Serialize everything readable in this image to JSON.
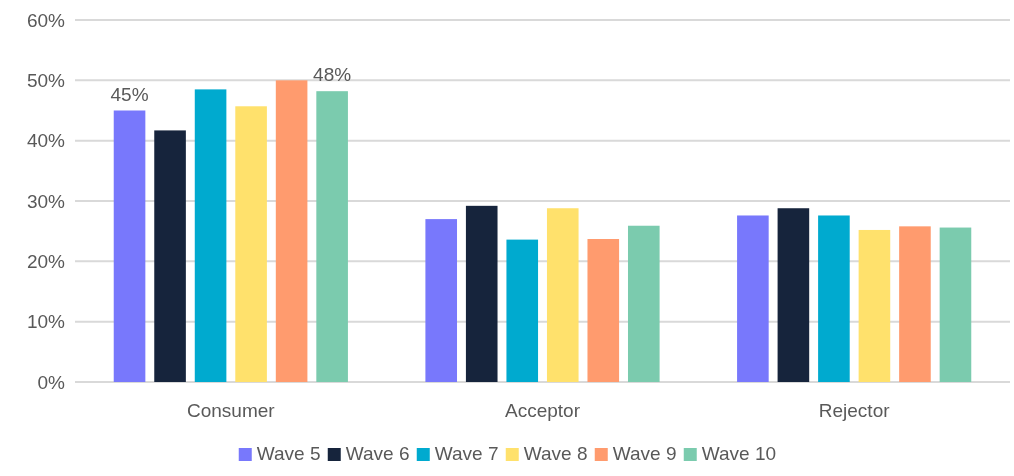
{
  "chart_data": {
    "type": "bar",
    "categories": [
      "Consumer",
      "Acceptor",
      "Rejector"
    ],
    "series": [
      {
        "name": "Wave 5",
        "color": "#7878fc",
        "values": [
          45.0,
          27.0,
          27.6
        ],
        "value_labels": [
          "45%",
          null,
          null
        ]
      },
      {
        "name": "Wave 6",
        "color": "#16243c",
        "values": [
          41.7,
          29.2,
          28.8
        ]
      },
      {
        "name": "Wave 7",
        "color": "#00aacf",
        "values": [
          48.5,
          23.6,
          27.6
        ]
      },
      {
        "name": "Wave 8",
        "color": "#ffe16c",
        "values": [
          45.7,
          28.8,
          25.2
        ]
      },
      {
        "name": "Wave 9",
        "color": "#ff9b6e",
        "values": [
          50.0,
          23.7,
          25.8
        ]
      },
      {
        "name": "Wave 10",
        "color": "#7bcbae",
        "values": [
          48.2,
          25.9,
          25.6
        ],
        "value_labels": [
          "48%",
          null,
          null
        ]
      }
    ],
    "ylim": [
      0,
      60
    ],
    "yticks": [
      {
        "value": 0,
        "label": "0%"
      },
      {
        "value": 10,
        "label": "10%"
      },
      {
        "value": 20,
        "label": "20%"
      },
      {
        "value": 30,
        "label": "30%"
      },
      {
        "value": 40,
        "label": "40%"
      },
      {
        "value": 50,
        "label": "50%"
      },
      {
        "value": 60,
        "label": "60%"
      }
    ],
    "grid": "y",
    "legend": "bottom"
  }
}
